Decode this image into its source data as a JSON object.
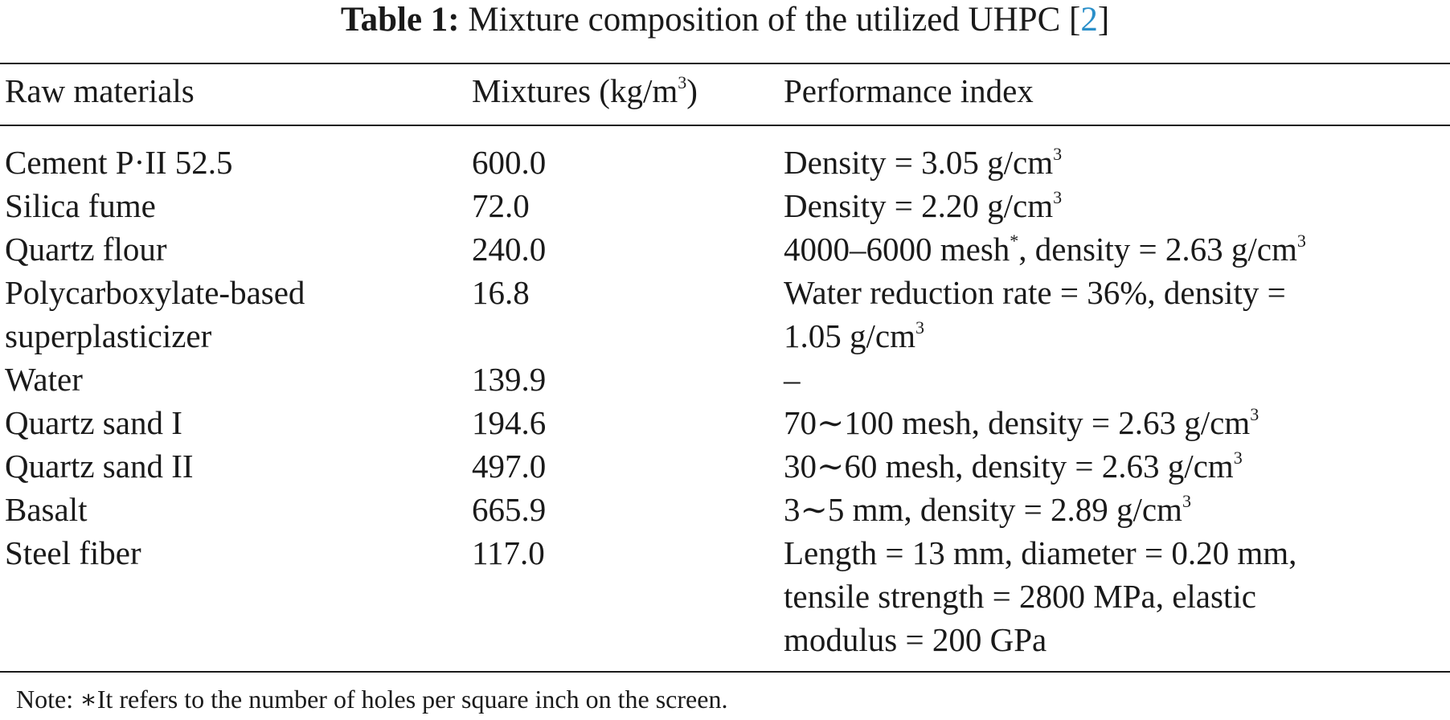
{
  "caption": {
    "label": "Table 1:",
    "text": "Mixture composition of the utilized UHPC [",
    "ref": "2",
    "close": "]"
  },
  "table": {
    "headers": {
      "raw": "Raw materials",
      "mix": "Mixtures (kg/m",
      "mix_sup": "3",
      "mix_close": ")",
      "perf": "Performance index"
    },
    "rows": [
      {
        "material": "Cement P·II 52.5",
        "mixture": "600.0",
        "perf": "Density = 3.05 g/cm",
        "perf_sup": "3"
      },
      {
        "material": "Silica fume",
        "mixture": "72.0",
        "perf": "Density = 2.20 g/cm",
        "perf_sup": "3"
      },
      {
        "material": "Quartz flour",
        "mixture": "240.0",
        "perf_a": "4000–6000 mesh",
        "perf_star": "*",
        "perf_b": ", density = 2.63 g/cm",
        "perf_sup": "3"
      },
      {
        "material_line1": "Polycarboxylate-based",
        "material_line2": "superplasticizer",
        "mixture": "16.8",
        "perf_line1": "Water reduction rate = 36%, density =",
        "perf_line2": "1.05 g/cm",
        "perf_sup": "3"
      },
      {
        "material": "Water",
        "mixture": "139.9",
        "perf": "–"
      },
      {
        "material": "Quartz sand I",
        "mixture": "194.6",
        "perf": "70∼100 mesh, density = 2.63 g/cm",
        "perf_sup": "3"
      },
      {
        "material": "Quartz sand II",
        "mixture": "497.0",
        "perf": "30∼60 mesh, density = 2.63 g/cm",
        "perf_sup": "3"
      },
      {
        "material": "Basalt",
        "mixture": "665.9",
        "perf": "3∼5 mm, density = 2.89 g/cm",
        "perf_sup": "3"
      },
      {
        "material": "Steel fiber",
        "mixture": "117.0",
        "perf_line1": "Length = 13 mm, diameter = 0.20 mm,",
        "perf_line2": "tensile strength = 2800 MPa, elastic",
        "perf_line3": "modulus = 200 GPa"
      }
    ]
  },
  "note": "Note: ∗It refers to the number of holes per square inch on the screen."
}
